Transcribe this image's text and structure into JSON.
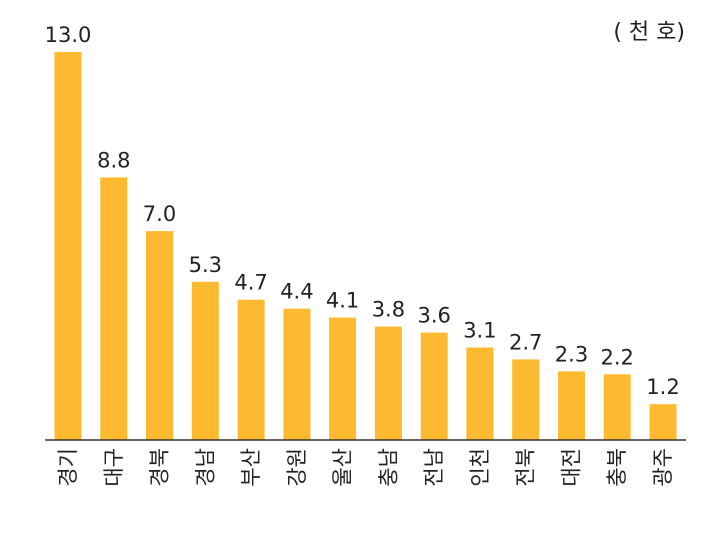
{
  "chart_data": {
    "type": "bar",
    "unit": "( 천 호)",
    "categories": [
      "경기",
      "대구",
      "경북",
      "경남",
      "부산",
      "강원",
      "울산",
      "충남",
      "전남",
      "인천",
      "전북",
      "대전",
      "충북",
      "광주"
    ],
    "values": [
      13.0,
      8.8,
      7.0,
      5.3,
      4.7,
      4.4,
      4.1,
      3.8,
      3.6,
      3.1,
      2.7,
      2.3,
      2.2,
      1.2
    ],
    "value_labels": [
      "13.0",
      "8.8",
      "7.0",
      "5.3",
      "4.7",
      "4.4",
      "4.1",
      "3.8",
      "3.6",
      "3.1",
      "2.7",
      "2.3",
      "2.2",
      "1.2"
    ],
    "bar_color": "#FDBA30",
    "axis_color": "#333333",
    "ylim": [
      0,
      13.0
    ],
    "grid": false,
    "legend": false
  }
}
